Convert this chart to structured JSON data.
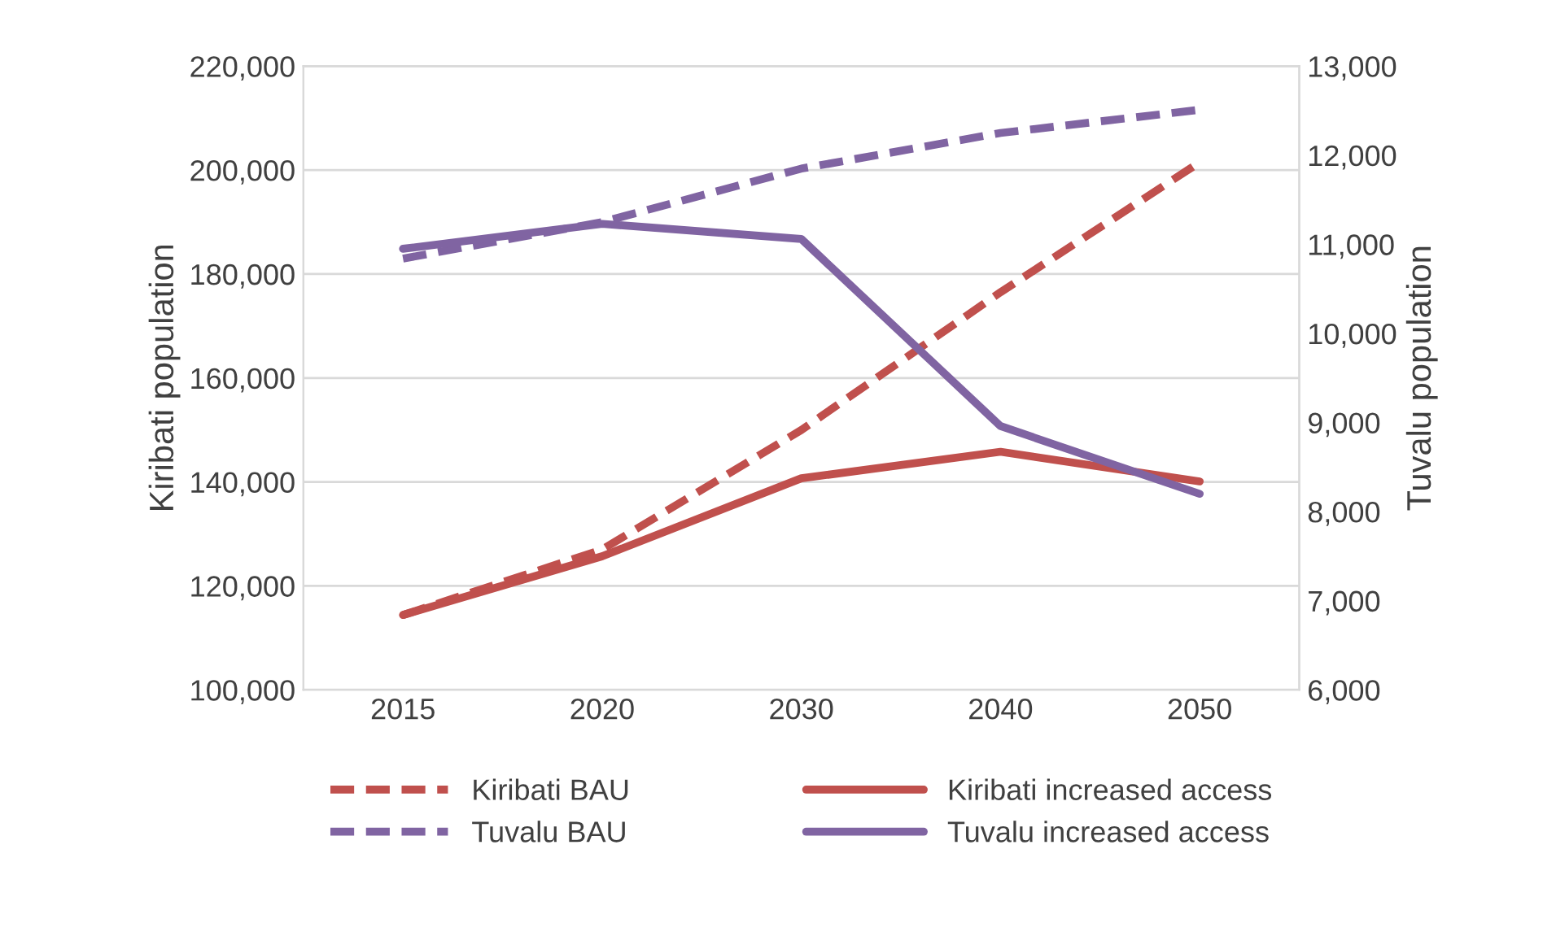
{
  "chart_data": {
    "type": "line",
    "categories": [
      "2015",
      "2020",
      "2030",
      "2040",
      "2050"
    ],
    "ylabel": "Kiribati population",
    "y2label": "Tuvalu population",
    "ylim": [
      100000,
      220000
    ],
    "yticks": [
      {
        "value": 100000,
        "label": "100,000"
      },
      {
        "value": 120000,
        "label": "120,000"
      },
      {
        "value": 140000,
        "label": "140,000"
      },
      {
        "value": 160000,
        "label": "160,000"
      },
      {
        "value": 180000,
        "label": "180,000"
      },
      {
        "value": 200000,
        "label": "200,000"
      },
      {
        "value": 220000,
        "label": "220,000"
      }
    ],
    "y2lim": [
      6000,
      13000
    ],
    "y2ticks": [
      {
        "value": 6000,
        "label": "6,000"
      },
      {
        "value": 7000,
        "label": "7,000"
      },
      {
        "value": 8000,
        "label": "8,000"
      },
      {
        "value": 9000,
        "label": "9,000"
      },
      {
        "value": 10000,
        "label": "10,000"
      },
      {
        "value": 11000,
        "label": "11,000"
      },
      {
        "value": 12000,
        "label": "12,000"
      },
      {
        "value": 13000,
        "label": "13,000"
      }
    ],
    "grid": "y",
    "legend": "bottom",
    "marker": "none",
    "series": [
      {
        "name": "Kiribati BAU",
        "color": "#c0504d",
        "line_style": "dashed",
        "values": [
          114400,
          127000,
          150000,
          176500,
          201500
        ]
      },
      {
        "name": "Kiribati increased access",
        "color": "#c0504d",
        "line_style": "solid",
        "values": [
          114400,
          125700,
          140700,
          145800,
          140100
        ]
      },
      {
        "name": "Tuvalu BAU",
        "color": "#8064a2",
        "line_style": "dashed",
        "axis": "y2",
        "values": [
          10840,
          11250,
          11850,
          12250,
          12510
        ]
      },
      {
        "name": "Tuvalu increased access",
        "color": "#8064a2",
        "line_style": "solid",
        "axis": "y2",
        "values": [
          10950,
          11230,
          11060,
          8960,
          8200
        ]
      }
    ]
  }
}
